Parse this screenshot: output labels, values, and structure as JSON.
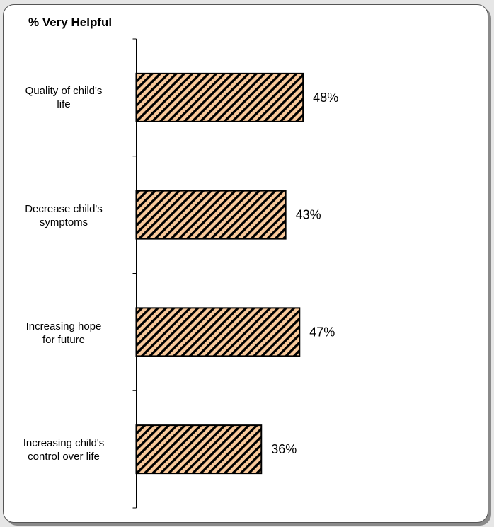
{
  "chart_data": {
    "type": "bar",
    "orientation": "horizontal",
    "title": "% Very Helpful",
    "categories": [
      "Quality of child's life",
      "Decrease child's symptoms",
      "Increasing hope for future",
      "Increasing child's control over life"
    ],
    "category_lines": [
      [
        "Quality of child's",
        "life"
      ],
      [
        "Decrease child's",
        "symptoms"
      ],
      [
        "Increasing hope",
        "for future"
      ],
      [
        "Increasing child's",
        "control over life"
      ]
    ],
    "values": [
      48,
      43,
      47,
      36
    ],
    "value_labels": [
      "48%",
      "43%",
      "47%",
      "36%"
    ],
    "unit": "%",
    "xlim": [
      0,
      100
    ],
    "bar_fill": "#f9c99b",
    "bar_hatch": "#000000",
    "grid": false,
    "legend": "none"
  }
}
